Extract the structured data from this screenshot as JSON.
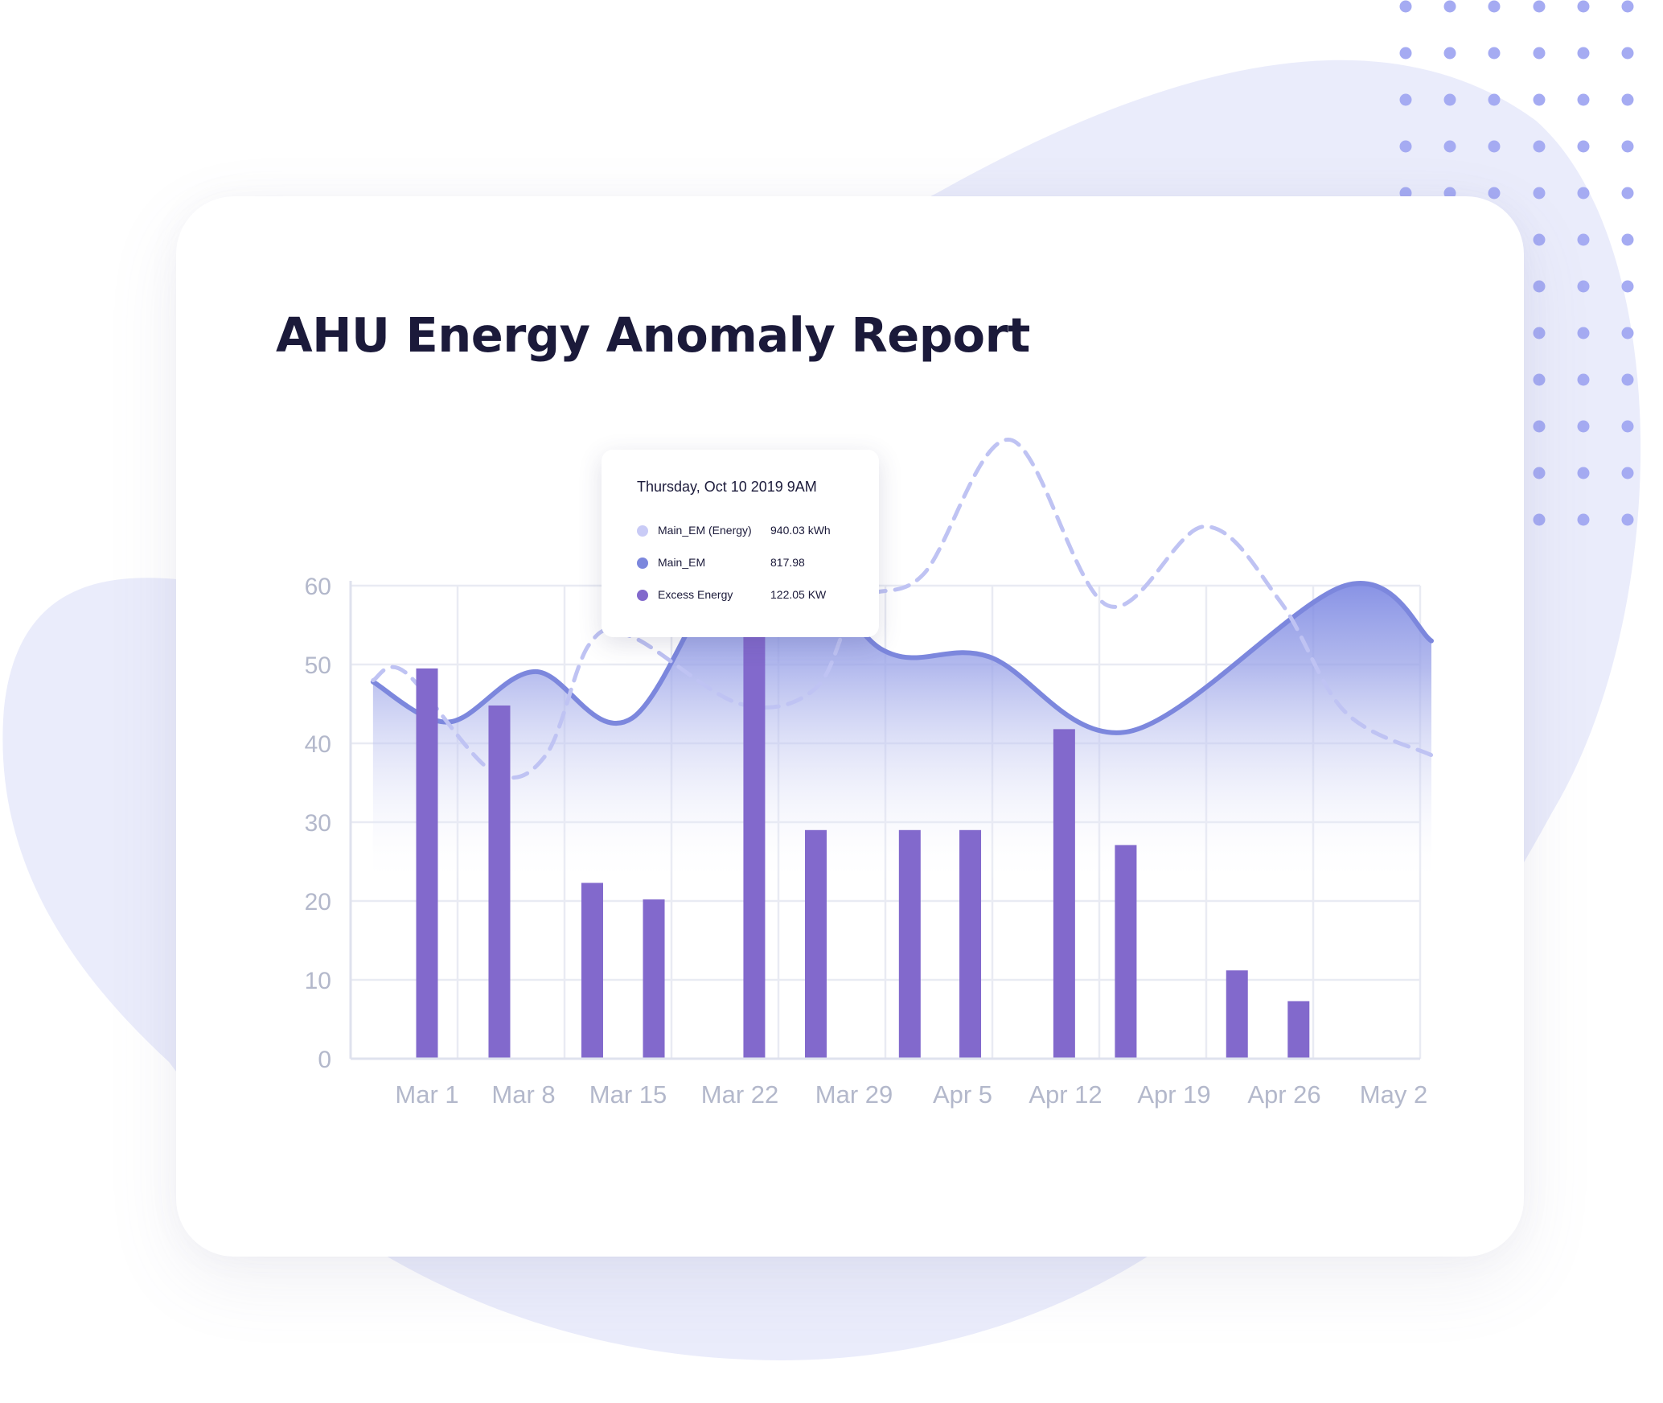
{
  "title": "AHU Energy Anomaly Report",
  "colors": {
    "bar": "#8269cc",
    "area_line": "#7c87dd",
    "dashed_line": "#bfc3f3",
    "blob": "#eaecfb",
    "dots": "#a5abf2",
    "title": "#1b1a3a",
    "tick": "#b3b8cb"
  },
  "tooltip": {
    "date": "Thursday, Oct 10 2019  9AM",
    "rows": [
      {
        "label": "Main_EM (Energy)",
        "value": "940.03 kWh",
        "color": "#c9cbf6"
      },
      {
        "label": "Main_EM",
        "value": "817.98",
        "color": "#7c87dd"
      },
      {
        "label": "Excess Energy",
        "value": "122.05 KW",
        "color": "#8269cc"
      }
    ]
  },
  "chart_data": {
    "type": "bar",
    "title": "AHU Energy Anomaly Report",
    "x_ticks": [
      "Mar 1",
      "Mar 8",
      "Mar 15",
      "Mar 22",
      "Mar 29",
      "Apr 5",
      "Apr 12",
      "Apr 19",
      "Apr 26",
      "May 2"
    ],
    "y_ticks": [
      0,
      10,
      20,
      30,
      40,
      50,
      60
    ],
    "ylim": [
      0,
      60
    ],
    "grid": true,
    "legend": "none",
    "series": [
      {
        "label": "Excess Energy",
        "type": "bar",
        "points": [
          {
            "x": 0.0,
            "y": 49.5
          },
          {
            "x": 0.67,
            "y": 44.8
          },
          {
            "x": 1.53,
            "y": 22.3
          },
          {
            "x": 2.1,
            "y": 20.2
          },
          {
            "x": 3.03,
            "y": 57.2
          },
          {
            "x": 3.6,
            "y": 29.0
          },
          {
            "x": 4.47,
            "y": 29.0
          },
          {
            "x": 5.03,
            "y": 29.0
          },
          {
            "x": 5.9,
            "y": 41.8
          },
          {
            "x": 6.47,
            "y": 27.1
          },
          {
            "x": 7.5,
            "y": 11.2
          },
          {
            "x": 8.07,
            "y": 7.3
          }
        ]
      },
      {
        "label": "Main_EM",
        "type": "area",
        "points": [
          {
            "x": -0.5,
            "y": 47.8
          },
          {
            "x": 0.2,
            "y": 42.7
          },
          {
            "x": 1.0,
            "y": 49.1
          },
          {
            "x": 1.9,
            "y": 43.2
          },
          {
            "x": 3.1,
            "y": 68.0
          },
          {
            "x": 4.2,
            "y": 52.0
          },
          {
            "x": 5.2,
            "y": 51.0
          },
          {
            "x": 6.5,
            "y": 41.5
          },
          {
            "x": 8.5,
            "y": 60.0
          },
          {
            "x": 9.3,
            "y": 53.0
          }
        ]
      },
      {
        "label": "Main_EM (Energy)",
        "type": "line",
        "points": [
          {
            "x": -0.5,
            "y": 48.0
          },
          {
            "x": -0.2,
            "y": 49.0
          },
          {
            "x": 0.6,
            "y": 36.5
          },
          {
            "x": 1.1,
            "y": 38.5
          },
          {
            "x": 1.5,
            "y": 52.5
          },
          {
            "x": 1.9,
            "y": 53.5
          },
          {
            "x": 2.9,
            "y": 45.0
          },
          {
            "x": 3.6,
            "y": 47.0
          },
          {
            "x": 4.0,
            "y": 58.0
          },
          {
            "x": 4.6,
            "y": 61.5
          },
          {
            "x": 5.4,
            "y": 78.5
          },
          {
            "x": 6.3,
            "y": 57.5
          },
          {
            "x": 7.2,
            "y": 67.5
          },
          {
            "x": 7.9,
            "y": 58.0
          },
          {
            "x": 8.5,
            "y": 44.0
          },
          {
            "x": 9.3,
            "y": 38.5
          }
        ]
      }
    ]
  }
}
